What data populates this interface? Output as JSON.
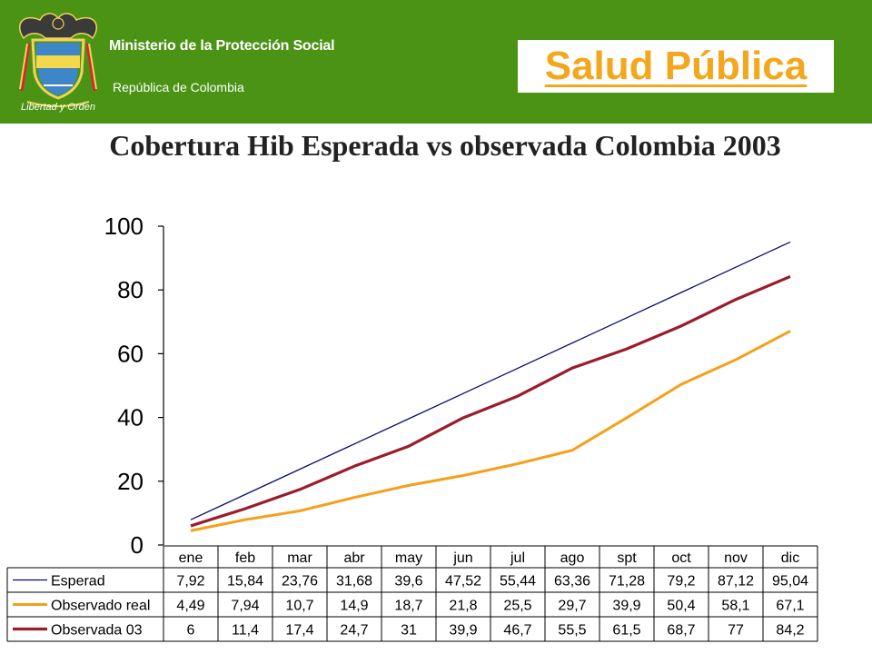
{
  "header": {
    "ministry": "Ministerio de la Protección Social",
    "republic": "República de Colombia",
    "logo_motto": "Libertad y Orden",
    "section_title": "Salud Pública"
  },
  "colors": {
    "header_bg": "#4b9315",
    "accent": "#f2a71c",
    "series_esperado": "#0a0a6e",
    "series_observado_real": "#f5a01a",
    "series_observada_03": "#9b1c2c"
  },
  "chart_data": {
    "type": "line",
    "title": "Cobertura Hib Esperada vs observada Colombia 2003",
    "categories": [
      "ene",
      "feb",
      "mar",
      "abr",
      "may",
      "jun",
      "jul",
      "ago",
      "spt",
      "oct",
      "nov",
      "dic"
    ],
    "series": [
      {
        "name": "Esperad",
        "values": [
          7.92,
          15.84,
          23.76,
          31.68,
          39.6,
          47.52,
          55.44,
          63.36,
          71.28,
          79.2,
          87.12,
          95.04
        ]
      },
      {
        "name": "Observado real",
        "values": [
          4.49,
          7.94,
          10.7,
          14.9,
          18.7,
          21.8,
          25.5,
          29.7,
          39.9,
          50.4,
          58.1,
          67.1
        ]
      },
      {
        "name": "Observada 03",
        "values": [
          6,
          11.4,
          17.4,
          24.7,
          31,
          39.9,
          46.7,
          55.5,
          61.5,
          68.7,
          77,
          84.2
        ]
      }
    ],
    "value_labels": [
      [
        "7,92",
        "15,84",
        "23,76",
        "31,68",
        "39,6",
        "47,52",
        "55,44",
        "63,36",
        "71,28",
        "79,2",
        "87,12",
        "95,04"
      ],
      [
        "4,49",
        "7,94",
        "10,7",
        "14,9",
        "18,7",
        "21,8",
        "25,5",
        "29,7",
        "39,9",
        "50,4",
        "58,1",
        "67,1"
      ],
      [
        "6",
        "11,4",
        "17,4",
        "24,7",
        "31",
        "39,9",
        "46,7",
        "55,5",
        "61,5",
        "68,7",
        "77",
        "84,2"
      ]
    ],
    "ylim": [
      0,
      100
    ],
    "yticks": [
      0,
      20,
      40,
      60,
      80,
      100
    ],
    "grid": false,
    "legend": "data-table"
  }
}
